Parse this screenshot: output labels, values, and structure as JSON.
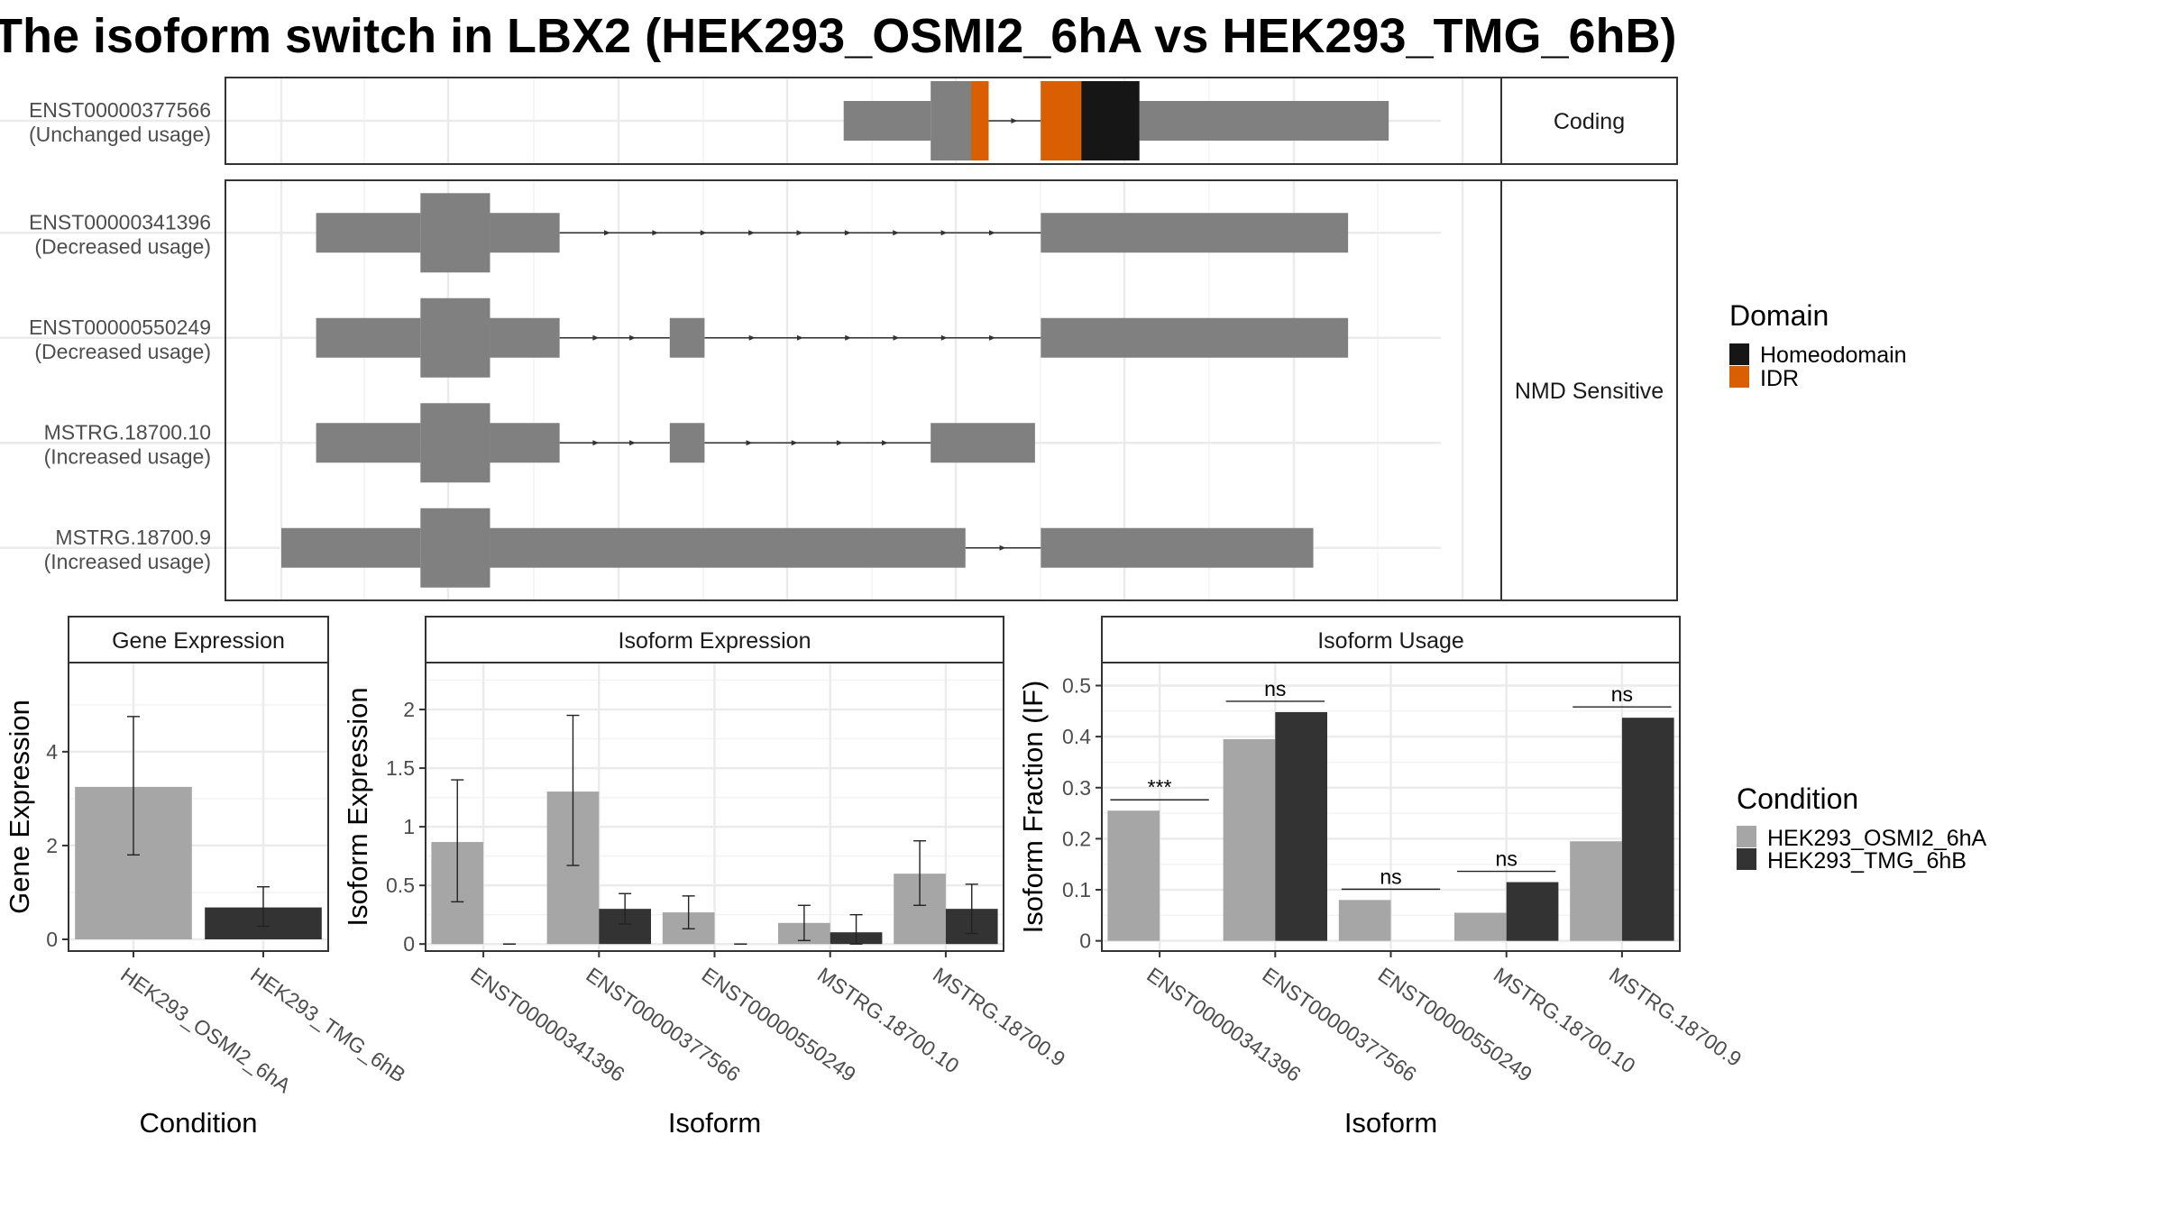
{
  "title": "The isoform switch in LBX2 (HEK293_OSMI2_6hA vs HEK293_TMG_6hB)",
  "colors": {
    "exon": "#808080",
    "condA": "#a6a6a6",
    "condB": "#333333",
    "Homeodomain": "#161616",
    "IDR": "#d95f02",
    "grid": "#ebebeb",
    "strip": "#ffffff"
  },
  "structure": {
    "coord_range": [
      0,
      100
    ],
    "panels": [
      {
        "strip_label": "Coding",
        "isoforms": [
          {
            "id": "ENST00000377566",
            "usage": "(Unchanged usage)",
            "exons": [
              {
                "start": 48.5,
                "end": 56.0,
                "type": "utr"
              },
              {
                "start": 56.0,
                "end": 61.0,
                "type": "cds"
              },
              {
                "start": 65.5,
                "end": 74.0,
                "type": "cds"
              },
              {
                "start": 74.0,
                "end": 95.5,
                "type": "utr"
              }
            ],
            "domains": [
              {
                "name": "IDR",
                "start": 59.5,
                "end": 61.0
              },
              {
                "name": "IDR",
                "start": 65.5,
                "end": 69.0
              },
              {
                "name": "Homeodomain",
                "start": 69.0,
                "end": 74.0
              }
            ]
          }
        ]
      },
      {
        "strip_label": "NMD Sensitive",
        "isoforms": [
          {
            "id": "ENST00000341396",
            "usage": "(Decreased usage)",
            "exons": [
              {
                "start": 3.0,
                "end": 12.0,
                "type": "utr"
              },
              {
                "start": 12.0,
                "end": 18.0,
                "type": "cds"
              },
              {
                "start": 18.0,
                "end": 24.0,
                "type": "utr"
              },
              {
                "start": 65.5,
                "end": 92.0,
                "type": "utr"
              }
            ],
            "domains": []
          },
          {
            "id": "ENST00000550249",
            "usage": "(Decreased usage)",
            "exons": [
              {
                "start": 3.0,
                "end": 12.0,
                "type": "utr"
              },
              {
                "start": 12.0,
                "end": 18.0,
                "type": "cds"
              },
              {
                "start": 18.0,
                "end": 24.0,
                "type": "utr"
              },
              {
                "start": 33.5,
                "end": 36.5,
                "type": "utr"
              },
              {
                "start": 65.5,
                "end": 92.0,
                "type": "utr"
              }
            ],
            "domains": []
          },
          {
            "id": "MSTRG.18700.10",
            "usage": "(Increased usage)",
            "exons": [
              {
                "start": 3.0,
                "end": 12.0,
                "type": "utr"
              },
              {
                "start": 12.0,
                "end": 18.0,
                "type": "cds"
              },
              {
                "start": 18.0,
                "end": 24.0,
                "type": "utr"
              },
              {
                "start": 33.5,
                "end": 36.5,
                "type": "utr"
              },
              {
                "start": 56.0,
                "end": 65.0,
                "type": "utr"
              }
            ],
            "domains": []
          },
          {
            "id": "MSTRG.18700.9",
            "usage": "(Increased usage)",
            "exons": [
              {
                "start": 0.0,
                "end": 12.0,
                "type": "utr"
              },
              {
                "start": 12.0,
                "end": 18.0,
                "type": "cds"
              },
              {
                "start": 18.0,
                "end": 59.0,
                "type": "utr"
              },
              {
                "start": 65.5,
                "end": 89.0,
                "type": "utr"
              }
            ],
            "domains": []
          }
        ]
      }
    ]
  },
  "legends": {
    "domain": {
      "title": "Domain",
      "items": [
        "Homeodomain",
        "IDR"
      ]
    },
    "condition": {
      "title": "Condition",
      "items": [
        "HEK293_OSMI2_6hA",
        "HEK293_TMG_6hB"
      ]
    }
  },
  "chart_data": [
    {
      "type": "bar",
      "title": "Gene Expression",
      "xlabel": "Condition",
      "ylabel": "Gene Expression",
      "categories": [
        "HEK293_OSMI2_6hA",
        "HEK293_TMG_6hB"
      ],
      "values": [
        3.25,
        0.68
      ],
      "errors": [
        [
          1.8,
          4.75
        ],
        [
          0.28,
          1.12
        ]
      ],
      "ylim": [
        -0.25,
        5.9
      ],
      "yticks": [
        0,
        2,
        4
      ]
    },
    {
      "type": "bar",
      "title": "Isoform Expression",
      "xlabel": "Isoform",
      "ylabel": "Isoform Expression",
      "categories": [
        "ENST00000341396",
        "ENST00000377566",
        "ENST00000550249",
        "MSTRG.18700.10",
        "MSTRG.18700.9"
      ],
      "series": [
        {
          "name": "HEK293_OSMI2_6hA",
          "values": [
            0.87,
            1.3,
            0.27,
            0.18,
            0.6
          ],
          "errors": [
            [
              0.36,
              1.4
            ],
            [
              0.67,
              1.95
            ],
            [
              0.13,
              0.41
            ],
            [
              0.03,
              0.33
            ],
            [
              0.33,
              0.88
            ]
          ]
        },
        {
          "name": "HEK293_TMG_6hB",
          "values": [
            0.0,
            0.3,
            0.0,
            0.1,
            0.3
          ],
          "errors": [
            [
              0.0,
              0.0
            ],
            [
              0.17,
              0.43
            ],
            [
              0.0,
              0.0
            ],
            [
              0.0,
              0.25
            ],
            [
              0.09,
              0.51
            ]
          ]
        }
      ],
      "ylim": [
        -0.06,
        2.4
      ],
      "yticks": [
        0.0,
        0.5,
        1.0,
        1.5,
        2.0
      ]
    },
    {
      "type": "bar",
      "title": "Isoform Usage",
      "xlabel": "Isoform",
      "ylabel": "Isoform Fraction (IF)",
      "categories": [
        "ENST00000341396",
        "ENST00000377566",
        "ENST00000550249",
        "MSTRG.18700.10",
        "MSTRG.18700.9"
      ],
      "series": [
        {
          "name": "HEK293_OSMI2_6hA",
          "values": [
            0.255,
            0.395,
            0.08,
            0.055,
            0.195
          ]
        },
        {
          "name": "HEK293_TMG_6hB",
          "values": [
            0.0,
            0.448,
            0.0,
            0.115,
            0.437
          ]
        }
      ],
      "significance": [
        "***",
        "ns",
        "ns",
        "ns",
        "ns"
      ],
      "ylim": [
        -0.02,
        0.545
      ],
      "yticks": [
        0.0,
        0.1,
        0.2,
        0.3,
        0.4,
        0.5
      ]
    }
  ]
}
